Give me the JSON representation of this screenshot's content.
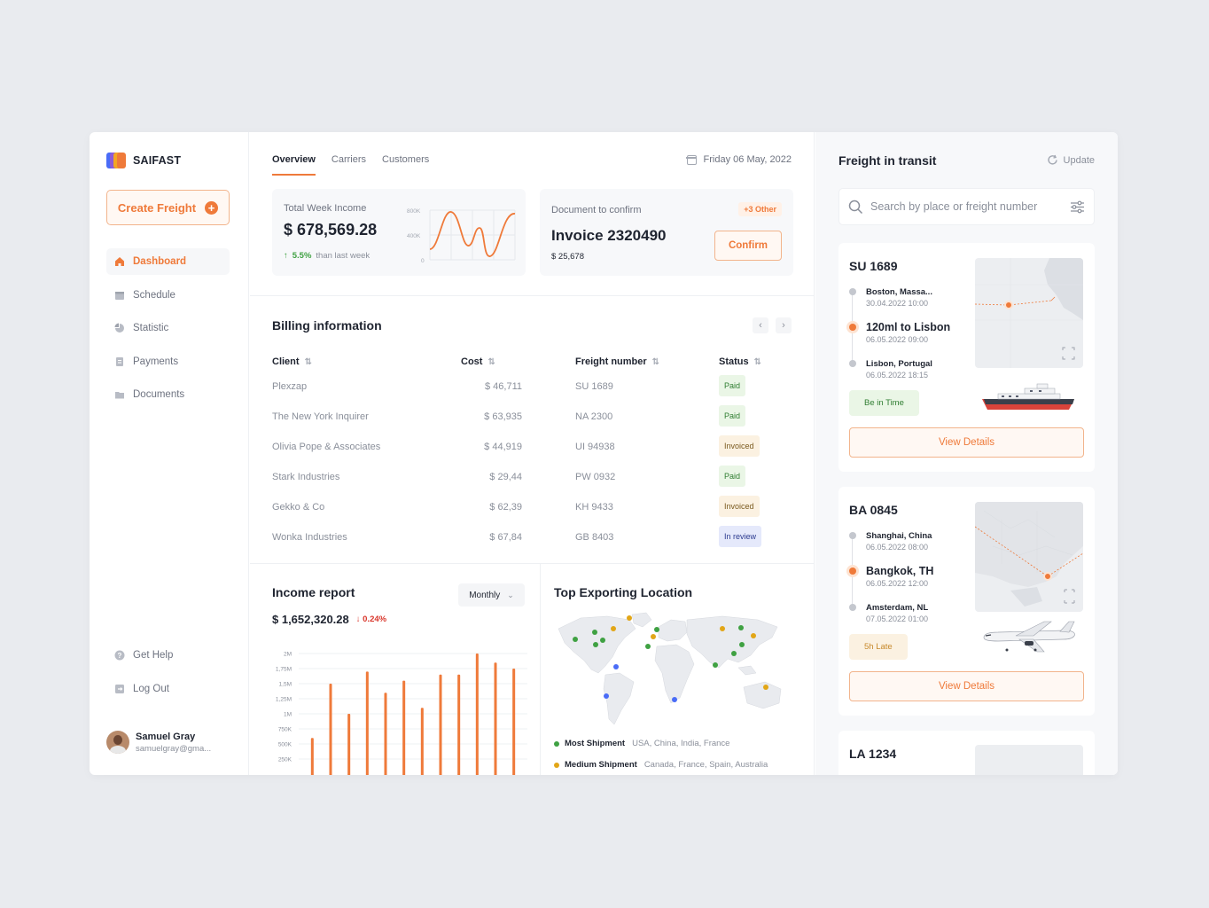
{
  "brand": {
    "name": "SAIFAST",
    "colors": [
      "#ef7a3a",
      "#f4a623",
      "#8e5bd6",
      "#4a6cf7"
    ]
  },
  "sidebar": {
    "create_label": "Create Freight",
    "items": [
      {
        "label": "Dashboard",
        "icon": "home-icon",
        "active": true
      },
      {
        "label": "Schedule",
        "icon": "calendar-icon"
      },
      {
        "label": "Statistic",
        "icon": "pie-chart-icon"
      },
      {
        "label": "Payments",
        "icon": "receipt-icon"
      },
      {
        "label": "Documents",
        "icon": "folder-icon"
      }
    ],
    "bottom": [
      {
        "label": "Get Help",
        "icon": "help-icon"
      },
      {
        "label": "Log Out",
        "icon": "logout-icon"
      }
    ],
    "user": {
      "name": "Samuel Gray",
      "email": "samuelgray@gma..."
    }
  },
  "header": {
    "tabs": [
      "Overview",
      "Carriers",
      "Customers"
    ],
    "active_tab": "Overview",
    "date": "Friday 06 May, 2022"
  },
  "income": {
    "label": "Total Week Income",
    "value": "$ 678,569.28",
    "change": "5.5%",
    "change_text": "than last week",
    "axis_labels": [
      "800K",
      "400K",
      "0"
    ]
  },
  "document": {
    "label": "Document to confirm",
    "other_badge": "+3 Other",
    "title": "Invoice 2320490",
    "amount": "$ 25,678",
    "confirm_label": "Confirm"
  },
  "billing": {
    "title": "Billing information",
    "columns": [
      "Client",
      "Cost",
      "Freight number",
      "Status"
    ],
    "rows": [
      {
        "client": "Plexzap",
        "cost": "$ 46,711",
        "freight": "SU 1689",
        "status": "Paid"
      },
      {
        "client": "The New York Inquirer",
        "cost": "$ 63,935",
        "freight": "NA 2300",
        "status": "Paid"
      },
      {
        "client": "Olivia Pope & Associates",
        "cost": "$ 44,919",
        "freight": "UI 94938",
        "status": "Invoiced"
      },
      {
        "client": "Stark Industries",
        "cost": "$ 29,44",
        "freight": "PW 0932",
        "status": "Paid"
      },
      {
        "client": "Gekko & Co",
        "cost": "$ 62,39",
        "freight": "KH 9433",
        "status": "Invoiced"
      },
      {
        "client": "Wonka Industries",
        "cost": "$ 67,84",
        "freight": "GB 8403",
        "status": "In review"
      }
    ]
  },
  "income_report": {
    "title": "Income report",
    "period": "Monthly",
    "value": "$ 1,652,320.28",
    "change": "0.24%"
  },
  "chart_data": {
    "type": "bar",
    "title": "Income report",
    "categories": [
      "",
      "",
      "",
      "",
      "",
      "",
      "",
      "",
      "",
      "",
      "",
      ""
    ],
    "values": [
      600000,
      1500000,
      1000000,
      1700000,
      1350000,
      1550000,
      1100000,
      1650000,
      1650000,
      2000000,
      1850000,
      1750000
    ],
    "ylim": [
      0,
      2000000
    ],
    "yticks": [
      "2M",
      "1,75M",
      "1,5M",
      "1,25M",
      "1M",
      "750K",
      "500K",
      "250K"
    ],
    "color": "#ef7a3a",
    "grid": true
  },
  "top_export": {
    "title": "Top Exporting Location",
    "legend": [
      {
        "name": "Most Shipment",
        "value": "USA, China, India, France",
        "color": "#3fa142"
      },
      {
        "name": "Medium Shipment",
        "value": "Canada, France, Spain, Australia",
        "color": "#e2a617"
      }
    ]
  },
  "transit": {
    "title": "Freight in transit",
    "update_label": "Update",
    "search_placeholder": "Search by place or freight number",
    "cards": [
      {
        "id": "SU 1689",
        "stops": [
          {
            "name": "Boston,  Massa...",
            "time": "30.04.2022 10:00"
          },
          {
            "name": "120ml to Lisbon",
            "time": "06.05.2022 09:00"
          },
          {
            "name": "Lisbon, Portugal",
            "time": "06.05.2022 18:15"
          }
        ],
        "status": "Be in Time",
        "vehicle": "ship-icon",
        "details_label": "View Details"
      },
      {
        "id": "BA 0845",
        "stops": [
          {
            "name": "Shanghai, China",
            "time": "06.05.2022 08:00"
          },
          {
            "name": "Bangkok, TH",
            "time": "06.05.2022 12:00"
          },
          {
            "name": "Amsterdam, NL",
            "time": "07.05.2022 01:00"
          }
        ],
        "status": "5h Late",
        "vehicle": "airplane-icon",
        "details_label": "View Details"
      },
      {
        "id": "LA 1234"
      }
    ]
  }
}
